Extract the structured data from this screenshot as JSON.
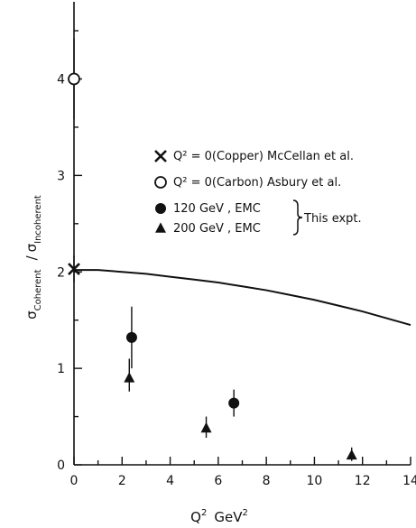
{
  "chart_data": {
    "type": "scatter",
    "xlabel": {
      "base": "Q",
      "sup": "2",
      "unit": "GeV",
      "unit_sup": "2"
    },
    "ylabel": {
      "sigma1": "σ",
      "sub1": "Coherent",
      "sep": "/",
      "sigma2": "σ",
      "sub2": "Incoherent"
    },
    "xlim": [
      0,
      14
    ],
    "ylim": [
      0,
      4.8
    ],
    "x_ticks": [
      0,
      2,
      4,
      6,
      8,
      10,
      12,
      14
    ],
    "x_tick_labels": [
      "0",
      "2",
      "4",
      "6",
      "8",
      "10",
      "12",
      "14"
    ],
    "y_ticks": [
      0,
      1,
      2,
      3,
      4
    ],
    "y_tick_labels": [
      "0",
      "1",
      "2",
      "3",
      "4"
    ],
    "grid": false,
    "legend_position": "upper-right",
    "series": [
      {
        "marker": "cross",
        "legend_label": "Q² = 0(Copper) McCellan et al.",
        "points": [
          {
            "x": 0.0,
            "y": 2.03,
            "err_low": 0.14,
            "err_high": 0.14
          }
        ]
      },
      {
        "marker": "open-circle",
        "legend_label": "Q² = 0(Carbon) Asbury et al.",
        "points": [
          {
            "x": 0.0,
            "y": 4.0,
            "err_low": 0.42,
            "err_high": 0.42
          }
        ]
      },
      {
        "marker": "filled-circle",
        "legend_label": "120 GeV , EMC",
        "points": [
          {
            "x": 2.4,
            "y": 1.32,
            "err_low": 0.32,
            "err_high": 0.32
          },
          {
            "x": 6.65,
            "y": 0.64,
            "err_low": 0.14,
            "err_high": 0.14
          }
        ]
      },
      {
        "marker": "filled-triangle",
        "legend_label": "200 GeV , EMC",
        "points": [
          {
            "x": 2.3,
            "y": 0.9,
            "err_low": 0.14,
            "err_high": 0.2
          },
          {
            "x": 5.5,
            "y": 0.38,
            "err_low": 0.1,
            "err_high": 0.12
          },
          {
            "x": 11.55,
            "y": 0.1,
            "err_low": 0.06,
            "err_high": 0.08
          }
        ]
      }
    ],
    "group_label": "This expt.",
    "curve": {
      "x": [
        0,
        1,
        2,
        3,
        4,
        5,
        6,
        7,
        8,
        9,
        10,
        11,
        12,
        13,
        14
      ],
      "y": [
        2.02,
        2.02,
        2.0,
        1.98,
        1.95,
        1.92,
        1.89,
        1.85,
        1.81,
        1.76,
        1.71,
        1.65,
        1.59,
        1.52,
        1.45
      ]
    }
  }
}
